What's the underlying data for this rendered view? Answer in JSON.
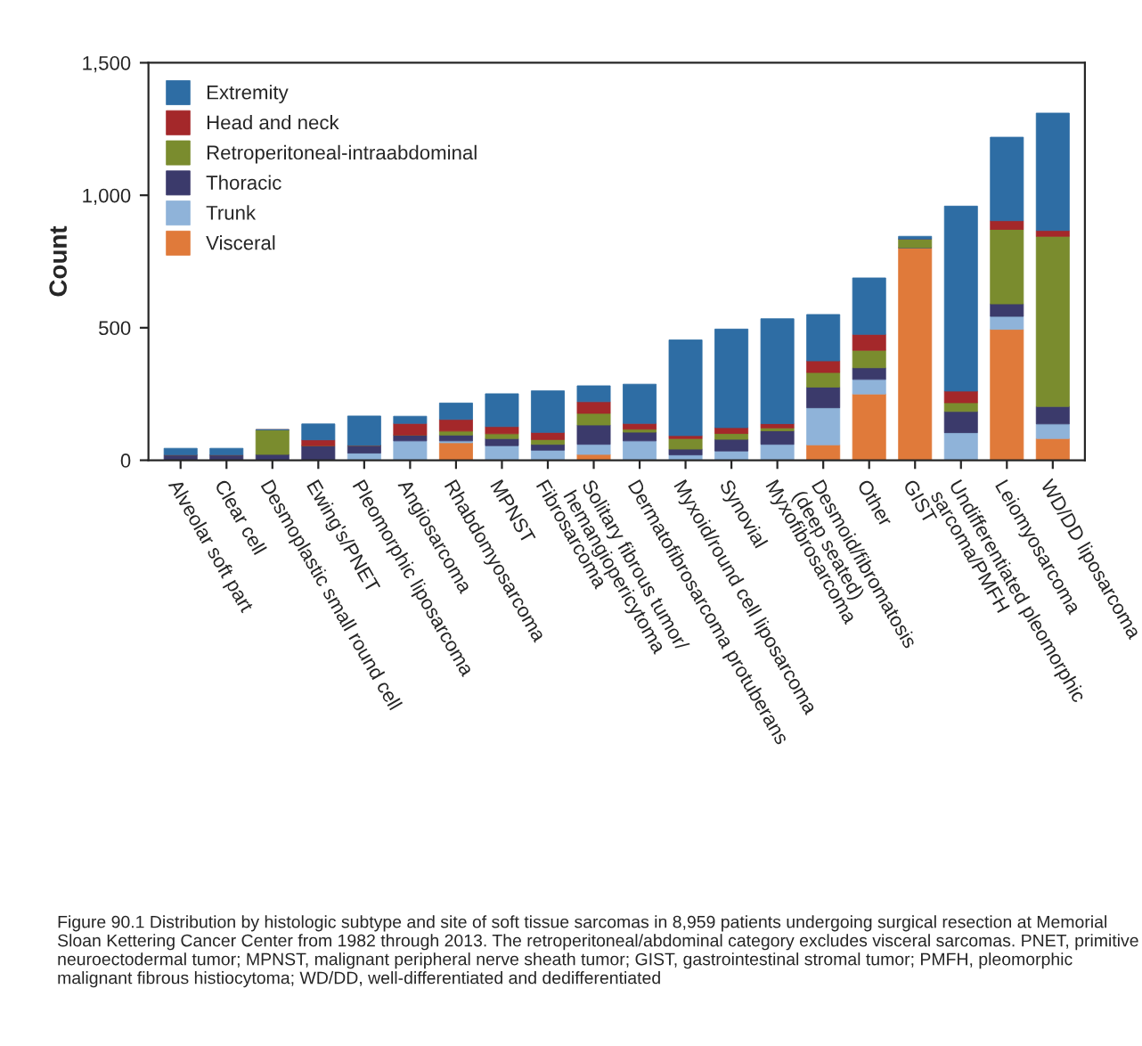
{
  "chart_data": {
    "type": "bar",
    "stacked": true,
    "ylabel": "Count",
    "categories": [
      "Alveolar soft part",
      "Clear cell",
      "Desmoplastic small round cell",
      "Ewing's/PNET",
      "Pleomorphic liposarcoma",
      "Angiosarcoma",
      "Rhabdomyosarcoma",
      "MPNST",
      "Fibrosarcoma",
      "Solitary fibrous tumor/\nhemangiopericytoma",
      "Dermatofibrosarcoma protuberans",
      "Myxoid/round cell liposarcoma",
      "Synovial",
      "Myxofibrosarcoma",
      "Desmoid/fibromatosis\n(deep seated)",
      "Other",
      "GIST",
      "Undifferentiated pleomorphic\nsarcoma/PMFH",
      "Leiomyosarcoma",
      "WD/DD liposarcoma"
    ],
    "series": [
      {
        "name": "Visceral",
        "color": "#e07a3a",
        "values": [
          0,
          0,
          0,
          0,
          0,
          null,
          66,
          null,
          null,
          22,
          0,
          0,
          0,
          0,
          58,
          250,
          802,
          null,
          494,
          82
        ]
      },
      {
        "name": "Trunk",
        "color": "#8fb3d9",
        "values": [
          0,
          0,
          0,
          0,
          27,
          73,
          7,
          55,
          38,
          38,
          73,
          20,
          35,
          60,
          140,
          55,
          0,
          104,
          49,
          55
        ]
      },
      {
        "name": "Thoracic",
        "color": "#3b3a6b",
        "values": [
          20,
          20,
          22,
          55,
          29,
          22,
          22,
          27,
          22,
          73,
          33,
          22,
          44,
          51,
          78,
          44,
          0,
          80,
          47,
          66
        ]
      },
      {
        "name": "Retroperitoneal-intraabdominal",
        "color": "#7a8c2e",
        "values": [
          0,
          0,
          93,
          0,
          0,
          0,
          15,
          18,
          18,
          44,
          11,
          40,
          22,
          11,
          55,
          66,
          33,
          33,
          281,
          642
        ]
      },
      {
        "name": "Head and neck",
        "color": "#a4282a",
        "values": [
          0,
          0,
          0,
          22,
          0,
          44,
          44,
          27,
          27,
          44,
          22,
          11,
          22,
          16,
          44,
          60,
          0,
          44,
          33,
          22
        ]
      },
      {
        "name": "Extremity",
        "color": "#2e6da4",
        "values": [
          25,
          25,
          0,
          60,
          111,
          27,
          62,
          124,
          157,
          60,
          148,
          361,
          372,
          396,
          175,
          213,
          10,
          698,
          315,
          443
        ]
      }
    ],
    "ylim": [
      0,
      1500
    ],
    "yticks": [
      0,
      500,
      {
        "value": 1000,
        "label": "1,000"
      },
      {
        "value": 1500,
        "label": "1,500"
      }
    ],
    "grid": false,
    "legend": "top left",
    "annotations": [
      "Figure 90.1 Distribution by histologic subtype and site of soft tissue sarcomas in 8,959 patients undergoing surgical resection at Memorial Sloan Kettering Cancer Center from 1982 through 2013. The retroperitoneal/abdominal category excludes visceral sarcomas. PNET, primitive neuroectodermal tumor; MPNST, malignant peripheral nerve sheath tumor; GIST, gastrointestinal stromal tumor; PMFH, pleomorphic malignant fibrous histiocytoma; WD/DD, well-differentiated and dedifferentiated"
    ]
  }
}
